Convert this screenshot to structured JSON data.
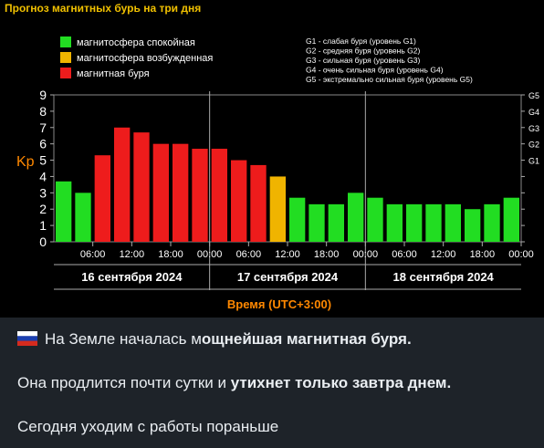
{
  "chart_data": {
    "type": "bar",
    "title": "Прогноз магнитных бурь на три дня",
    "ylabel": "Kp",
    "xlabel": "Время (UTC+3:00)",
    "ylim": [
      0,
      9
    ],
    "yticks": [
      "0",
      "1",
      "2",
      "3",
      "4",
      "5",
      "6",
      "7",
      "8",
      "9"
    ],
    "g_ticks": [
      {
        "label": "G5",
        "kp": 9
      },
      {
        "label": "G4",
        "kp": 8
      },
      {
        "label": "G3",
        "kp": 7
      },
      {
        "label": "G2",
        "kp": 6
      },
      {
        "label": "G1",
        "kp": 5
      }
    ],
    "x_tick_labels": [
      "06:00",
      "12:00",
      "18:00",
      "00:00",
      "06:00",
      "12:00",
      "18:00",
      "00:00",
      "06:00",
      "12:00",
      "18:00",
      "00:00"
    ],
    "days": [
      "16 сентября 2024",
      "17 сентября 2024",
      "18 сентября 2024"
    ],
    "values": [
      3.7,
      3.0,
      5.3,
      7.0,
      6.7,
      6.0,
      6.0,
      5.7,
      5.7,
      5.0,
      4.7,
      4.0,
      2.7,
      2.3,
      2.3,
      3.0,
      2.7,
      2.3,
      2.3,
      2.3,
      2.3,
      2.0,
      2.3,
      2.7
    ],
    "bar_states": [
      "quiet",
      "quiet",
      "storm",
      "storm",
      "storm",
      "storm",
      "storm",
      "storm",
      "storm",
      "storm",
      "storm",
      "active",
      "quiet",
      "quiet",
      "quiet",
      "quiet",
      "quiet",
      "quiet",
      "quiet",
      "quiet",
      "quiet",
      "quiet",
      "quiet",
      "quiet"
    ],
    "legend": [
      {
        "key": "quiet",
        "label": "магнитосфера спокойная",
        "color": "#22dd22"
      },
      {
        "key": "active",
        "label": "магнитосфера возбужденная",
        "color": "#f0b400"
      },
      {
        "key": "storm",
        "label": "магнитная буря",
        "color": "#ee1c1c"
      }
    ],
    "g_legend": [
      "G1 - слабая буря (уровень G1)",
      "G2 - средняя буря (уровень G2)",
      "G3 - сильная буря (уровень G3)",
      "G4 - очень сильная буря (уровень G4)",
      "G5 - экстремально сильная буря (уровень G5)"
    ]
  },
  "colors": {
    "title": "#f0c000",
    "axis_label": "#ff8800",
    "text": "#ffffff",
    "grid": "#777777"
  },
  "message": {
    "line1_prefix": "На Земле началась м",
    "line1_bold": "ощнейшая магнитная буря.",
    "line2_prefix": "Она продлится почти сутки и ",
    "line2_bold": "утихнет только завтра днем.",
    "line3": "Сегодня уходим с работы пораньше",
    "flag_icon": "russia-flag-icon"
  }
}
